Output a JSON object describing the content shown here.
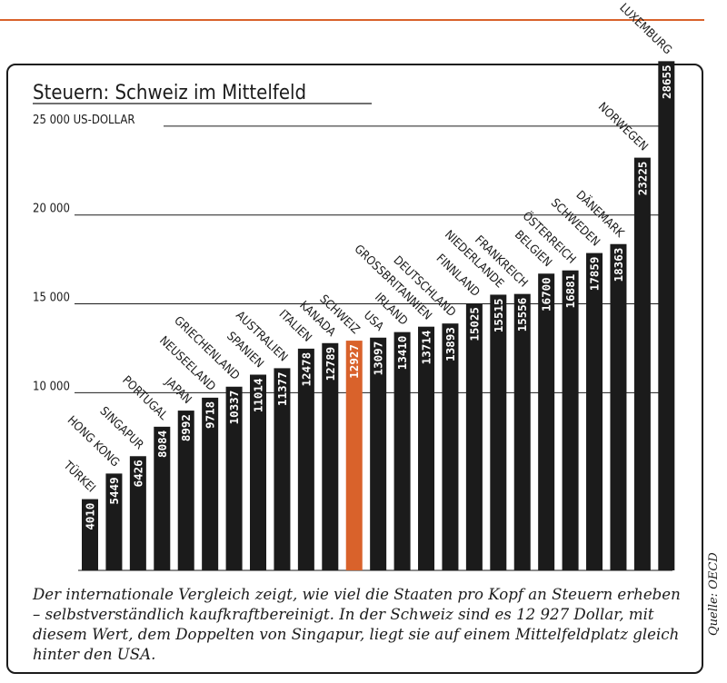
{
  "chart_data": {
    "type": "bar",
    "title": "Steuern: Schweiz im Mittelfeld",
    "ylabel": "",
    "xlabel": "",
    "ylim": [
      0,
      28655
    ],
    "yticks": [
      {
        "value": 10000,
        "label": "10 000"
      },
      {
        "value": 15000,
        "label": "15 000"
      },
      {
        "value": 20000,
        "label": "20 000"
      },
      {
        "value": 25000,
        "label": "25 000 US-DOLLAR"
      }
    ],
    "grid": true,
    "categories": [
      "TÜRKEI",
      "HONG KONG",
      "SINGAPUR",
      "PORTUGAL",
      "JAPAN",
      "NEUSEELAND",
      "GRIECHENLAND",
      "SPANIEN",
      "AUSTRALIEN",
      "ITALIEN",
      "KANADA",
      "SCHWEIZ",
      "USA",
      "IRLAND",
      "GROSSBRITANNIEN",
      "DEUTSCHLAND",
      "FINNLAND",
      "NIEDERLANDE",
      "FRANKREICH",
      "BELGIEN",
      "ÖSTERREICH",
      "SCHWEDEN",
      "DÄNEMARK",
      "NORWEGEN",
      "LUXEMBURG"
    ],
    "values": [
      4010,
      5449,
      6426,
      8084,
      8992,
      9718,
      10337,
      11014,
      11377,
      12478,
      12789,
      12927,
      13097,
      13410,
      13714,
      13893,
      15025,
      15515,
      15556,
      16700,
      16881,
      17859,
      18363,
      23225,
      28655
    ],
    "value_labels": [
      "4010",
      "5449",
      "6426",
      "8084",
      "8992",
      "9718",
      "10337",
      "11014",
      "11377",
      "12478",
      "12789",
      "12927",
      "13097",
      "13410",
      "13714",
      "13893",
      "15025",
      "15515",
      "15556",
      "16700",
      "16881",
      "17859",
      "18363",
      "23225",
      "28655"
    ],
    "highlight": "SCHWEIZ",
    "colors": {
      "bar": "#1b1b1b",
      "highlight": "#d9622b",
      "grid": "#1b1b1b"
    }
  },
  "caption": "Der internationale Vergleich zeigt, wie viel die Staaten pro Kopf an Steuern erheben – selbstverständlich kaufkraftbereinigt. In der Schweiz sind es 12 927 Dollar, mit diesem Wert, dem Doppelten von Singapur, liegt sie auf einem Mittelfeldplatz gleich hinter den USA.",
  "source": "Quelle: OECD"
}
